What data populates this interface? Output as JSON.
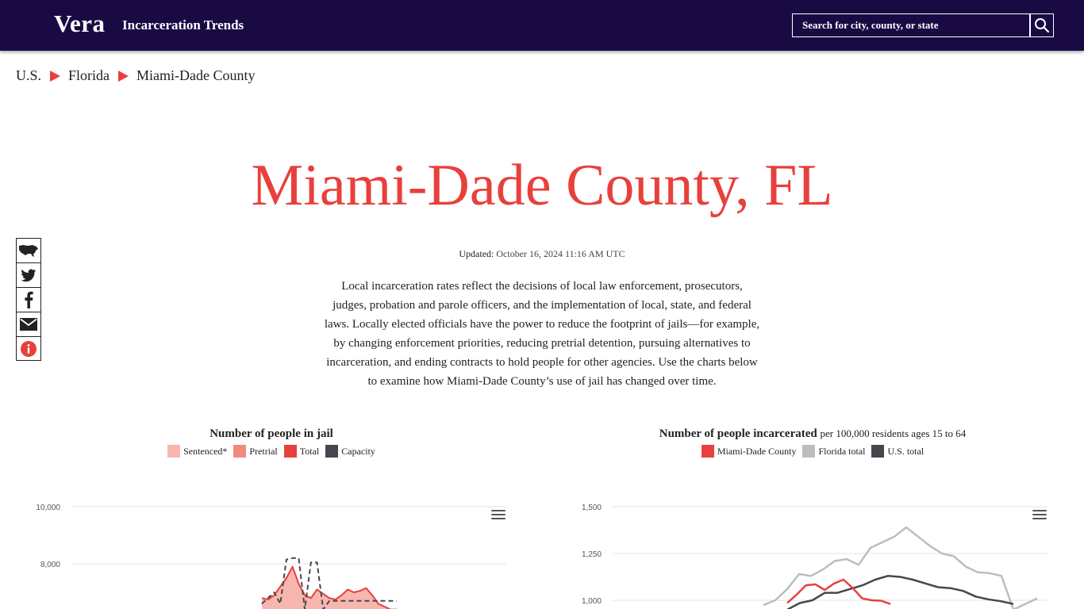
{
  "header": {
    "logo": "Vera",
    "app_title": "Incarceration Trends",
    "search_placeholder": "Search for city, county, or state",
    "search_icon": "magnifier-icon",
    "bg_color": "#1a0a44"
  },
  "breadcrumb": [
    "U.S.",
    "Florida",
    "Miami-Dade County"
  ],
  "page": {
    "title": "Miami-Dade County, FL",
    "updated_label": "Updated:",
    "updated_value": "October 16, 2024 11:16 AM UTC",
    "intro": "Local incarceration rates reflect the decisions of local law enforcement, prosecutors, judges, probation and parole officers, and the implementation of local, state, and federal laws. Locally elected officials have the power to reduce the footprint of jails—for example, by changing enforcement priorities, reducing pretrial detention, pursuing alternatives to incarceration, and ending contracts to hold people for other agencies. Use the charts below to examine how Miami-Dade County’s use of jail has changed over time.",
    "accent_color": "#e8403c"
  },
  "share": [
    "us-map-icon",
    "twitter-icon",
    "facebook-icon",
    "email-icon",
    "info-icon"
  ],
  "charts": {
    "left": {
      "title": "Number of people in jail",
      "subtitle": "",
      "legend": [
        {
          "label": "Sentenced*",
          "color": "#f7b6ae"
        },
        {
          "label": "Pretrial",
          "color": "#f08a80"
        },
        {
          "label": "Total",
          "color": "#e8403c"
        },
        {
          "label": "Capacity",
          "color": "#47464f"
        }
      ]
    },
    "right": {
      "title": "Number of people incarcerated",
      "subtitle": "per 100,000 residents ages 15 to 64",
      "legend": [
        {
          "label": "Miami-Dade County",
          "color": "#e8403c"
        },
        {
          "label": "Florida total",
          "color": "#bdbdbd"
        },
        {
          "label": "U.S. total",
          "color": "#47464f"
        }
      ]
    }
  },
  "chart_data": [
    {
      "type": "area",
      "title": "Number of people in jail",
      "y_ticks": [
        "10,000",
        "8,000"
      ],
      "y_tick_values": [
        10000,
        8000
      ],
      "ylim": [
        6400,
        10000
      ],
      "x": [
        0,
        1,
        2,
        3,
        4,
        5,
        6,
        7,
        8,
        9,
        10,
        11,
        12,
        13,
        14,
        15,
        16,
        17,
        18,
        19,
        20,
        21,
        22
      ],
      "series": [
        {
          "name": "Total",
          "values": [
            6800,
            6750,
            6900,
            7200,
            7500,
            7900,
            7300,
            6900,
            6800,
            7100,
            6950,
            6800,
            6750,
            6900,
            7100,
            7000,
            7050,
            7150,
            6900,
            6600,
            6500,
            6400,
            6400
          ]
        },
        {
          "name": "Capacity",
          "values": [
            6600,
            6800,
            7000,
            6600,
            8150,
            8200,
            8200,
            6400,
            8050,
            8050,
            6400,
            6700,
            6700,
            6700,
            6700,
            6700,
            6700,
            6700,
            6700,
            6700,
            6700,
            6700,
            6700
          ]
        }
      ]
    },
    {
      "type": "line",
      "title": "Number of people incarcerated",
      "y_ticks": [
        "1,500",
        "1,250",
        "1,000"
      ],
      "y_tick_values": [
        1500,
        1250,
        1000
      ],
      "ylim": [
        950,
        1500
      ],
      "series": [
        {
          "name": "Miami-Dade County",
          "values": [
            985,
            1030,
            1080,
            1085,
            1055,
            1090,
            1110,
            1065,
            1010,
            1000,
            998,
            980
          ]
        },
        {
          "name": "Florida total",
          "values": [
            975,
            1000,
            1060,
            1140,
            1130,
            1165,
            1210,
            1220,
            1190,
            1280,
            1310,
            1340,
            1390,
            1340,
            1290,
            1250,
            1235,
            1180,
            1150,
            1145,
            1130,
            950,
            980,
            1010
          ]
        },
        {
          "name": "U.S. total",
          "values": [
            950,
            985,
            1000,
            1040,
            1040,
            1060,
            1080,
            1110,
            1130,
            1125,
            1110,
            1090,
            1070,
            1065,
            1050,
            1020,
            1005,
            995,
            980
          ]
        }
      ]
    }
  ]
}
